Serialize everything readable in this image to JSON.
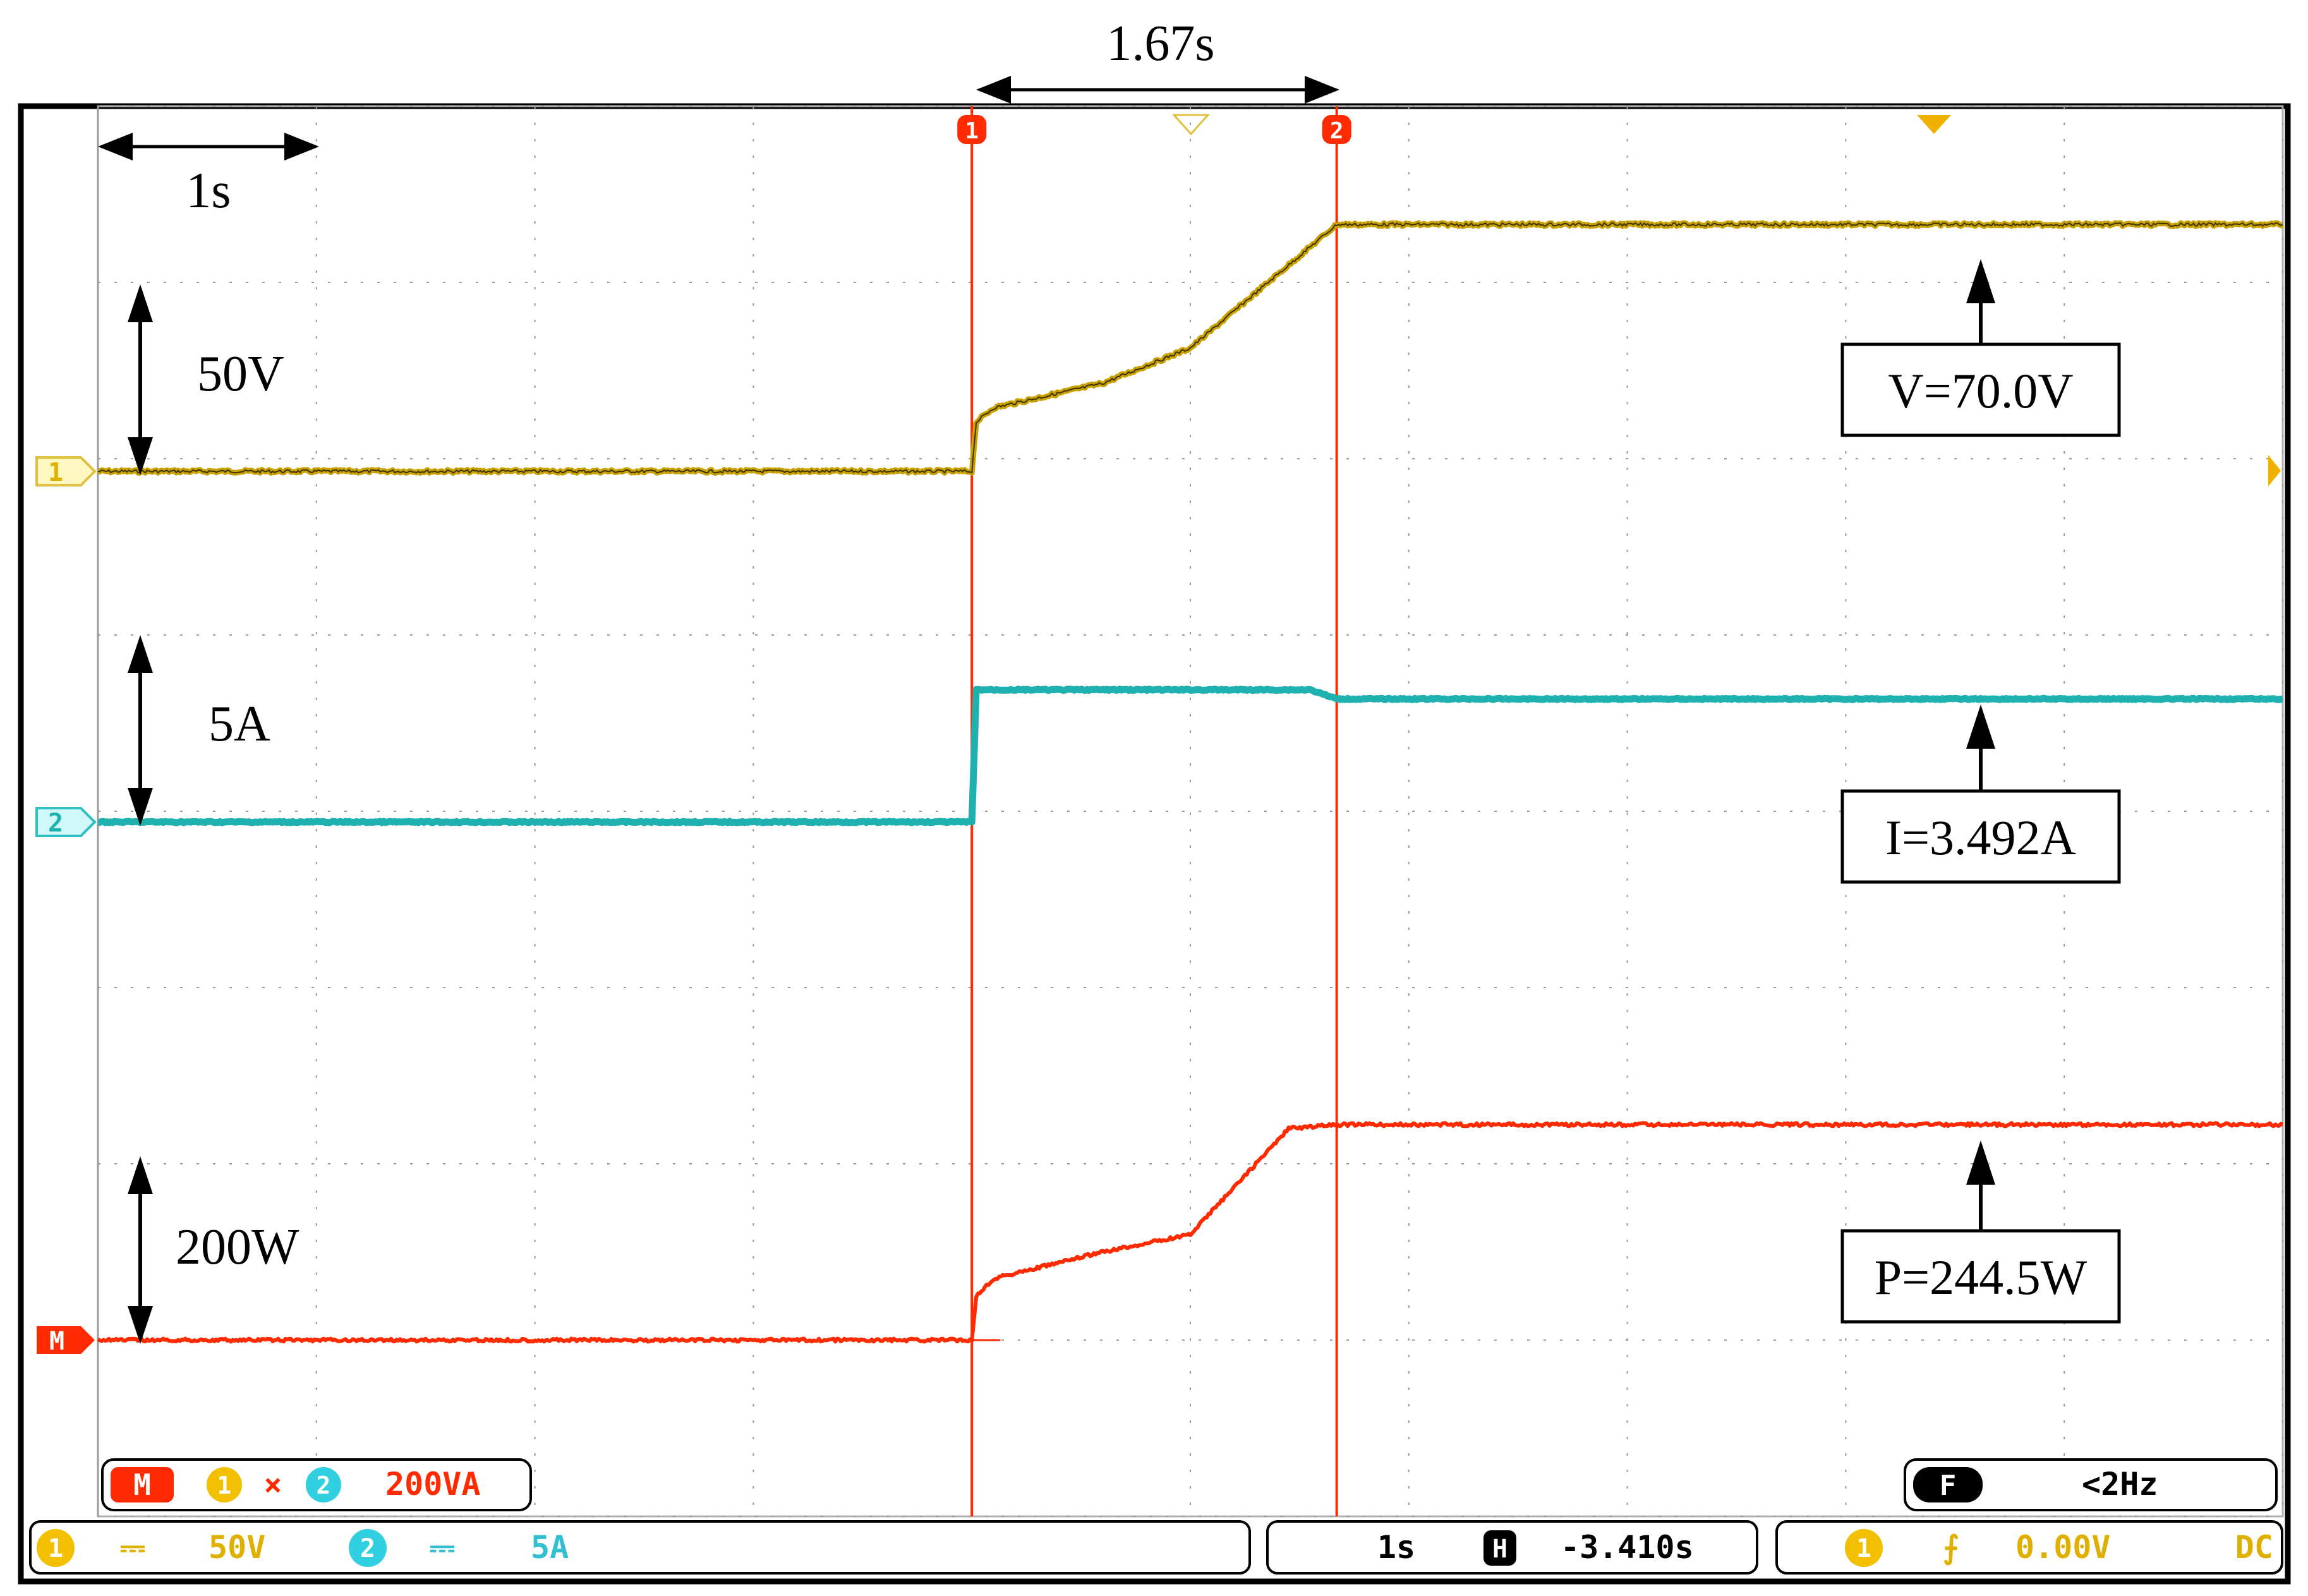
{
  "chart_data": {
    "type": "line",
    "title": "",
    "xlabel": "",
    "ylabel": "",
    "x_unit": "s",
    "x_range": [
      -5.0,
      5.0
    ],
    "grid": true,
    "series": [
      {
        "name": "",
        "channel": "1",
        "color": "#c9a200",
        "scale_label": "50V",
        "unit": "V",
        "points": [
          [
            -5.0,
            0
          ],
          [
            -1.0,
            0
          ],
          [
            -0.98,
            14
          ],
          [
            -0.9,
            18
          ],
          [
            -0.4,
            25
          ],
          [
            0.0,
            35
          ],
          [
            0.67,
            70
          ],
          [
            5.0,
            70
          ]
        ]
      },
      {
        "name": "",
        "channel": "2",
        "color": "#1fb0b0",
        "scale_label": "5A",
        "unit": "A",
        "points": [
          [
            -5.0,
            0
          ],
          [
            -1.0,
            0
          ],
          [
            -0.98,
            3.75
          ],
          [
            0.55,
            3.75
          ],
          [
            0.67,
            3.49
          ],
          [
            5.0,
            3.49
          ]
        ]
      },
      {
        "name": "",
        "channel": "M",
        "color": "#ff2a00",
        "scale_label": "200W",
        "unit": "W",
        "points": [
          [
            -5.0,
            0
          ],
          [
            -1.0,
            0
          ],
          [
            -0.98,
            50
          ],
          [
            -0.9,
            70
          ],
          [
            -0.4,
            100
          ],
          [
            0.0,
            120
          ],
          [
            0.45,
            240
          ],
          [
            0.67,
            244.5
          ],
          [
            5.0,
            244.5
          ]
        ]
      }
    ],
    "annotations": {
      "delta_t": "1.67s",
      "time_div": "1s",
      "voltage_reading": "V=70.0V",
      "current_reading": "I=3.492A",
      "power_reading": "P=244.5W"
    },
    "cursors": {
      "label_1": "1",
      "label_2": "2",
      "t1": -1.0,
      "t2": 0.67
    }
  },
  "osd": {
    "math_badge": "M",
    "math_ch1": "1",
    "math_op": "×",
    "math_ch2": "2",
    "math_scale": "200VA",
    "filter_badge": "F",
    "filter_value": "<2Hz",
    "ch1_badge": "1",
    "ch1_coupling": "⎓",
    "ch1_scale": "50V",
    "ch2_badge": "2",
    "ch2_coupling": "⎓",
    "ch2_scale": "5A",
    "timebase": "1s",
    "h_badge": "H",
    "h_position": "-3.410s",
    "trig_badge": "1",
    "trig_slope": "⨍",
    "trig_level": "0.00V",
    "trig_coupling": "DC",
    "marker_1": "1",
    "marker_2": "2",
    "marker_m": "M"
  },
  "colors": {
    "ch1": "#c9a200",
    "ch2": "#1fb0b0",
    "math": "#ff2a00",
    "cursor": "#ff2a00",
    "grid": "#9a9a9a"
  }
}
